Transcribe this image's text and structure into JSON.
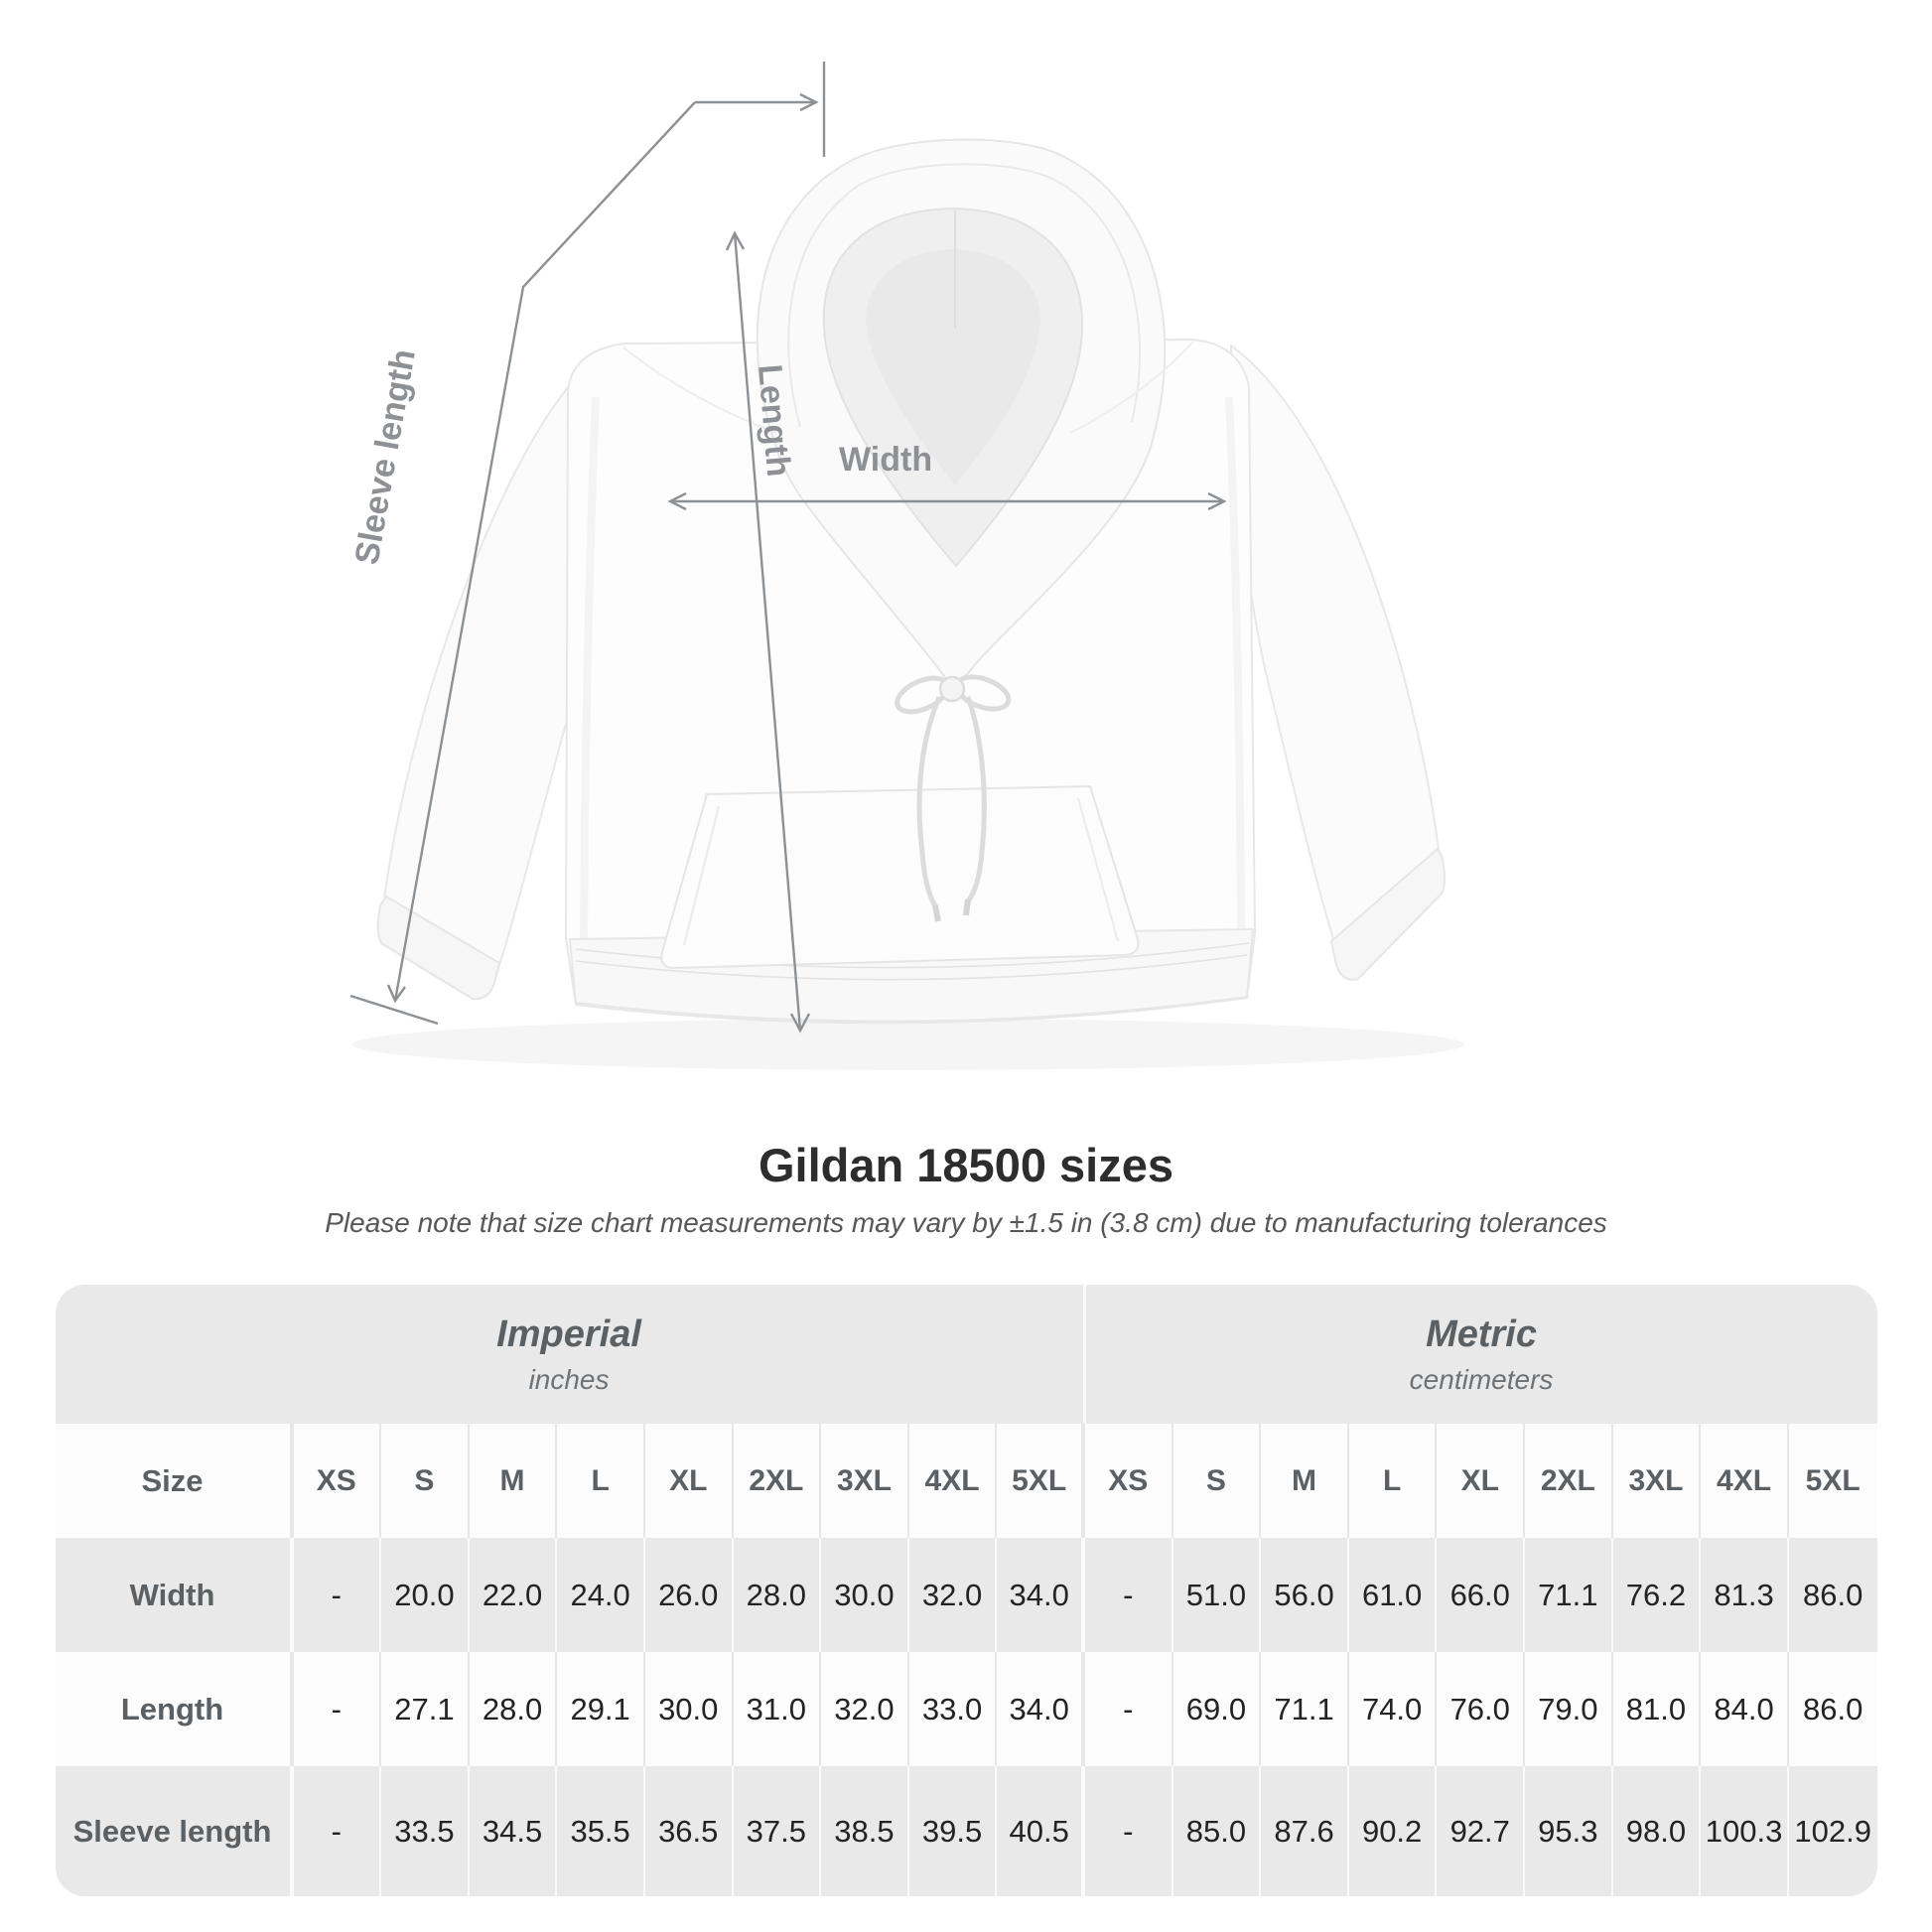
{
  "figure": {
    "labels": {
      "length": "Length",
      "width": "Width",
      "sleeve": "Sleeve length"
    }
  },
  "title": "Gildan 18500 sizes",
  "subtitle": "Please note that size chart measurements may vary by ±1.5 in (3.8 cm) due to manufacturing tolerances",
  "table": {
    "groups": [
      {
        "label": "Imperial",
        "sublabel": "inches"
      },
      {
        "label": "Metric",
        "sublabel": "centimeters"
      }
    ],
    "size_label": "Size",
    "sizes": [
      "XS",
      "S",
      "M",
      "L",
      "XL",
      "2XL",
      "3XL",
      "4XL",
      "5XL"
    ],
    "rows": [
      {
        "label": "Width",
        "imperial": [
          "-",
          "20.0",
          "22.0",
          "24.0",
          "26.0",
          "28.0",
          "30.0",
          "32.0",
          "34.0"
        ],
        "metric": [
          "-",
          "51.0",
          "56.0",
          "61.0",
          "66.0",
          "71.1",
          "76.2",
          "81.3",
          "86.0"
        ]
      },
      {
        "label": "Length",
        "imperial": [
          "-",
          "27.1",
          "28.0",
          "29.1",
          "30.0",
          "31.0",
          "32.0",
          "33.0",
          "34.0"
        ],
        "metric": [
          "-",
          "69.0",
          "71.1",
          "74.0",
          "76.0",
          "79.0",
          "81.0",
          "84.0",
          "86.0"
        ]
      },
      {
        "label": "Sleeve length",
        "imperial": [
          "-",
          "33.5",
          "34.5",
          "35.5",
          "36.5",
          "37.5",
          "38.5",
          "39.5",
          "40.5"
        ],
        "metric": [
          "-",
          "85.0",
          "87.6",
          "90.2",
          "92.7",
          "95.3",
          "98.0",
          "100.3",
          "102.9"
        ]
      }
    ]
  },
  "chart_data": {
    "type": "table",
    "title": "Gildan 18500 sizes",
    "note": "Please note that size chart measurements may vary by ±1.5 in (3.8 cm) due to manufacturing tolerances",
    "column_groups": [
      "Imperial (inches)",
      "Metric (centimeters)"
    ],
    "columns": [
      "Size",
      "XS",
      "S",
      "M",
      "L",
      "XL",
      "2XL",
      "3XL",
      "4XL",
      "5XL",
      "XS",
      "S",
      "M",
      "L",
      "XL",
      "2XL",
      "3XL",
      "4XL",
      "5XL"
    ],
    "rows": [
      [
        "Width",
        "-",
        20.0,
        22.0,
        24.0,
        26.0,
        28.0,
        30.0,
        32.0,
        34.0,
        "-",
        51.0,
        56.0,
        61.0,
        66.0,
        71.1,
        76.2,
        81.3,
        86.0
      ],
      [
        "Length",
        "-",
        27.1,
        28.0,
        29.1,
        30.0,
        31.0,
        32.0,
        33.0,
        34.0,
        "-",
        69.0,
        71.1,
        74.0,
        76.0,
        79.0,
        81.0,
        84.0,
        86.0
      ],
      [
        "Sleeve length",
        "-",
        33.5,
        34.5,
        35.5,
        36.5,
        37.5,
        38.5,
        39.5,
        40.5,
        "-",
        85.0,
        87.6,
        90.2,
        92.7,
        95.3,
        98.0,
        100.3,
        102.9
      ]
    ],
    "measurement_labels_on_image": [
      "Length",
      "Width",
      "Sleeve length"
    ]
  },
  "colors": {
    "page_bg": "#ffffff",
    "table_bg": "#e9e9e9",
    "row_light": "#fcfcfd",
    "divider_on_light": "#e6e7e8",
    "divider_on_dark": "#fafafa",
    "heading_text": "#5a6064",
    "subheading_text": "#6d7276",
    "value_text": "#232323",
    "title_text": "#2d2d2d",
    "subtitle_text": "#575757",
    "measure": "#8d9195"
  }
}
